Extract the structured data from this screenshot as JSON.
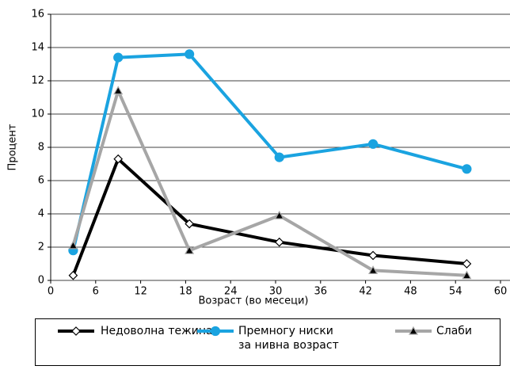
{
  "chart_data": {
    "type": "line",
    "xlabel": "Возраст (во месеци)",
    "ylabel": "Процент",
    "xlim": [
      0,
      60
    ],
    "xticks": [
      0,
      6,
      12,
      18,
      24,
      30,
      36,
      42,
      48,
      54,
      60
    ],
    "ylim": [
      0,
      16
    ],
    "yticks": [
      0,
      2,
      4,
      6,
      8,
      10,
      12,
      14,
      16
    ],
    "grid": true,
    "x": [
      3,
      9,
      18.5,
      30.5,
      43,
      55.5
    ],
    "series": [
      {
        "name": "Недоволна тежина",
        "color": "#000000",
        "marker": "diamond",
        "values": [
          0.3,
          7.3,
          3.4,
          2.3,
          1.5,
          1.0
        ]
      },
      {
        "name": "Премногу ниски\nза нивна возраст",
        "color": "#1aa3e0",
        "marker": "circle",
        "values": [
          1.8,
          13.4,
          13.6,
          7.4,
          8.2,
          6.7
        ]
      },
      {
        "name": "Слаби",
        "color": "#a6a6a6",
        "marker": "triangle",
        "values": [
          2.1,
          11.4,
          1.8,
          3.9,
          0.6,
          0.3
        ]
      }
    ],
    "legend": "bottom"
  }
}
